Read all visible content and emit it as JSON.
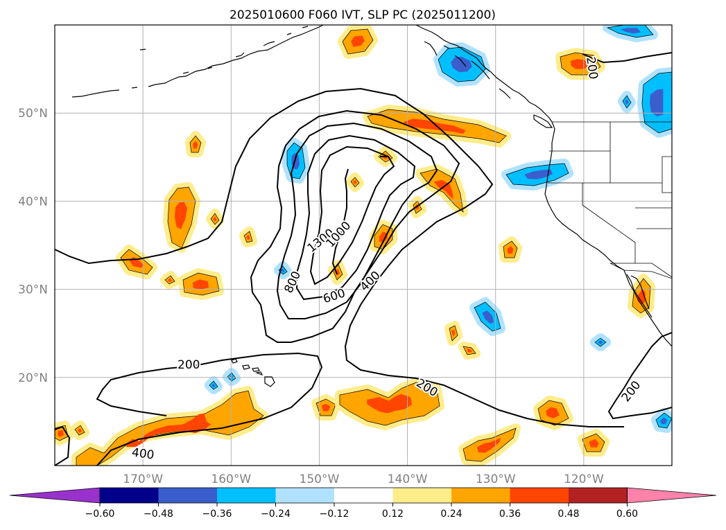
{
  "title": "2025010600 F060 IVT, SLP PC (2025011200)",
  "map": {
    "projection": "cylindrical",
    "lon_range": [
      -180,
      -110
    ],
    "lat_range": [
      10,
      60
    ],
    "lat_ticks": [
      {
        "lat": 50,
        "label": "50°N"
      },
      {
        "lat": 40,
        "label": "40°N"
      },
      {
        "lat": 30,
        "label": "30°N"
      },
      {
        "lat": 20,
        "label": "20°N"
      }
    ],
    "lon_ticks": [
      {
        "lon": -170,
        "label": "170°W"
      },
      {
        "lon": -160,
        "label": "160°W"
      },
      {
        "lon": -150,
        "label": "150°W"
      },
      {
        "lon": -140,
        "label": "140°W"
      },
      {
        "lon": -130,
        "label": "130°W"
      },
      {
        "lon": -120,
        "label": "120°W"
      }
    ],
    "grid": true,
    "coastlines": true,
    "state_borders": true
  },
  "contour_labels": [
    {
      "text": "1300",
      "lon": -149.8,
      "lat": 35.5,
      "rot": -38
    },
    {
      "text": "1000",
      "lon": -147.8,
      "lat": 36.2,
      "rot": -48
    },
    {
      "text": "800",
      "lon": -153.0,
      "lat": 30.8,
      "rot": -65
    },
    {
      "text": "600",
      "lon": -148.3,
      "lat": 29.2,
      "rot": -18
    },
    {
      "text": "400",
      "lon": -144.2,
      "lat": 30.9,
      "rot": -45
    },
    {
      "text": "200",
      "lon": -164.8,
      "lat": 21.4,
      "rot": 0
    },
    {
      "text": "200",
      "lon": -137.8,
      "lat": 18.8,
      "rot": 32
    },
    {
      "text": "200",
      "lon": -114.6,
      "lat": 18.4,
      "rot": -52
    },
    {
      "text": "200",
      "lon": -119.1,
      "lat": 55.1,
      "rot": 82
    },
    {
      "text": "400",
      "lon": -170.0,
      "lat": 11.3,
      "rot": 8
    }
  ],
  "colorbar": {
    "levels": [
      "−0.60",
      "−0.48",
      "−0.36",
      "−0.24",
      "−0.12",
      "0.12",
      "0.24",
      "0.36",
      "0.48",
      "0.60"
    ],
    "colors": [
      "#9932cc",
      "#00008b",
      "#3a5fcd",
      "#00bfff",
      "#b0e2ff",
      "#ffffff",
      "#ffec8b",
      "#ffa500",
      "#ff4500",
      "#b22222",
      "#ff82ab"
    ],
    "extend": "both"
  },
  "shading_colors": {
    "pos_light": "#ffec8b",
    "pos_mid": "#ffa500",
    "pos_strong": "#ff4500",
    "neg_light": "#b0e2ff",
    "neg_mid": "#00bfff",
    "neg_strong": "#3a5fcd"
  }
}
